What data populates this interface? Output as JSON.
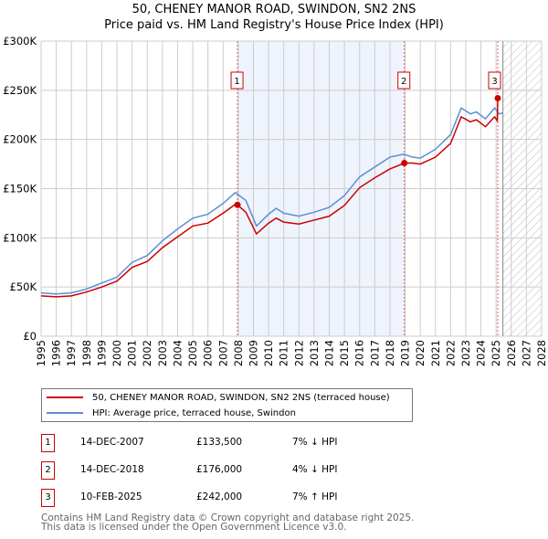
{
  "chart_data": {
    "type": "line",
    "title": "50, CHENEY MANOR ROAD, SWINDON, SN2 2NS",
    "subtitle": "Price paid vs. HM Land Registry's House Price Index (HPI)",
    "xlim": [
      1995,
      2028
    ],
    "ylim": [
      0,
      300000
    ],
    "yticks": [
      {
        "v": 0,
        "label": "£0"
      },
      {
        "v": 50000,
        "label": "£50K"
      },
      {
        "v": 100000,
        "label": "£100K"
      },
      {
        "v": 150000,
        "label": "£150K"
      },
      {
        "v": 200000,
        "label": "£200K"
      },
      {
        "v": 250000,
        "label": "£250K"
      },
      {
        "v": 300000,
        "label": "£300K"
      }
    ],
    "xticks": [
      1995,
      1996,
      1997,
      1998,
      1999,
      2000,
      2001,
      2002,
      2003,
      2004,
      2005,
      2006,
      2007,
      2008,
      2009,
      2010,
      2011,
      2012,
      2013,
      2014,
      2015,
      2016,
      2017,
      2018,
      2019,
      2020,
      2021,
      2022,
      2023,
      2024,
      2025,
      2026,
      2027,
      2028
    ],
    "grid": true,
    "shaded_range": [
      2007.95,
      2018.95
    ],
    "forecast_hatch_from": 2025.45,
    "series": [
      {
        "name": "50, CHENEY MANOR ROAD, SWINDON, SN2 2NS (terraced house)",
        "color": "#cc0000",
        "x": [
          1995,
          1996,
          1997,
          1998,
          1999,
          2000,
          2001,
          2002,
          2003,
          2004,
          2005,
          2006,
          2007,
          2007.8,
          2007.95,
          2008.5,
          2009.2,
          2010,
          2010.5,
          2011,
          2012,
          2013,
          2014,
          2015,
          2016,
          2017,
          2018,
          2018.95,
          2019.5,
          2020,
          2021,
          2022,
          2022.7,
          2023.3,
          2023.7,
          2024.3,
          2024.9,
          2025.08,
          2025.11,
          2025.2
        ],
        "y": [
          41000,
          40000,
          41000,
          45000,
          50000,
          56000,
          70000,
          76000,
          90000,
          101000,
          112000,
          115000,
          125000,
          134000,
          133500,
          126000,
          104000,
          115000,
          120000,
          116000,
          114000,
          118000,
          122000,
          133000,
          151000,
          161000,
          170000,
          176000,
          176000,
          175000,
          182000,
          196000,
          223000,
          218000,
          220000,
          213000,
          223000,
          219000,
          242000,
          242000
        ]
      },
      {
        "name": "HPI: Average price, terraced house, Swindon",
        "color": "#5b8fd4",
        "x": [
          1995,
          1996,
          1997,
          1998,
          1999,
          2000,
          2001,
          2002,
          2003,
          2004,
          2005,
          2006,
          2007,
          2007.8,
          2008.5,
          2009.2,
          2010,
          2010.5,
          2011,
          2012,
          2013,
          2014,
          2015,
          2016,
          2017,
          2018,
          2018.9,
          2019.5,
          2020,
          2021,
          2022,
          2022.7,
          2023.3,
          2023.7,
          2024.3,
          2024.9,
          2025.2,
          2025.45
        ],
        "y": [
          44000,
          43000,
          44000,
          48000,
          54000,
          60000,
          75000,
          82000,
          97000,
          109000,
          120000,
          124000,
          135000,
          146000,
          138000,
          112000,
          124000,
          130000,
          125000,
          122000,
          126000,
          131000,
          143000,
          162000,
          172000,
          182000,
          185000,
          182000,
          181000,
          190000,
          205000,
          232000,
          226000,
          228000,
          221000,
          232000,
          226000,
          227000
        ]
      }
    ],
    "annotations": [
      {
        "label": "1",
        "x": 2007.95,
        "y": 133500
      },
      {
        "label": "2",
        "x": 2018.95,
        "y": 176000
      },
      {
        "label": "3",
        "x": 2025.11,
        "y": 242000
      }
    ]
  },
  "legend": [
    {
      "label": "50, CHENEY MANOR ROAD, SWINDON, SN2 2NS (terraced house)",
      "color": "#cc0000"
    },
    {
      "label": "HPI: Average price, terraced house, Swindon",
      "color": "#5b8fd4"
    }
  ],
  "transactions": [
    {
      "num": "1",
      "date": "14-DEC-2007",
      "price": "£133,500",
      "hpi": "7% ↓ HPI"
    },
    {
      "num": "2",
      "date": "14-DEC-2018",
      "price": "£176,000",
      "hpi": "4% ↓ HPI"
    },
    {
      "num": "3",
      "date": "10-FEB-2025",
      "price": "£242,000",
      "hpi": "7% ↑ HPI"
    }
  ],
  "footer": [
    "Contains HM Land Registry data © Crown copyright and database right 2025.",
    "This data is licensed under the Open Government Licence v3.0."
  ]
}
